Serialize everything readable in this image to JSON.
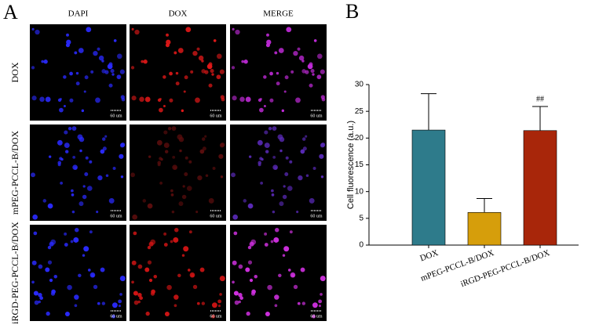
{
  "panel_a": {
    "label": "A",
    "columns": [
      "DAPI",
      "DOX",
      "MERGE"
    ],
    "rows": [
      "DOX",
      "mPEG-PCCL-B/DOX",
      "iRGD-PEG-PCCL-B/DOX"
    ],
    "scale_bar_labels": [
      "60 um",
      "60 um",
      "60 um",
      "60 um",
      "60 um",
      "60 um",
      "60 um",
      "60 um",
      "60 um"
    ]
  },
  "panel_b": {
    "label": "B"
  },
  "chart_data": {
    "type": "bar",
    "ylabel": "Cell fluorescence (a.u.)",
    "categories": [
      "DOX",
      "mPEG-PCCL-B/DOX",
      "iRGD-PEG-PCCL-B/DOX"
    ],
    "values": [
      21.5,
      6.1,
      21.4
    ],
    "errors": [
      6.8,
      2.6,
      4.5
    ],
    "colors": [
      "#2e7b8b",
      "#d69e0b",
      "#a8260a"
    ],
    "ylim": [
      0,
      30
    ],
    "yticks": [
      0,
      5,
      10,
      15,
      20,
      25,
      30
    ],
    "annotation": "##"
  }
}
